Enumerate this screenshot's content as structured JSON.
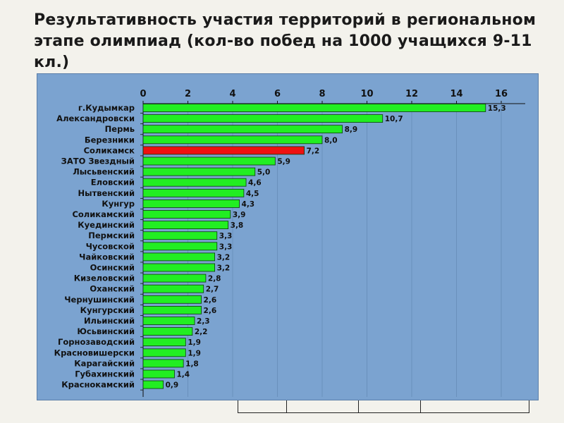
{
  "title": "Результативность участия территорий в региональном этапе олимпиад (кол-во побед на 1000 учащихся 9-11 кл.)",
  "colors": {
    "panel_bg": "#7ba3d0",
    "bar_default": "#22ee22",
    "bar_highlight": "#ee1111",
    "bar_stroke": "#0a3a0a"
  },
  "chart_data": {
    "type": "bar",
    "orientation": "horizontal",
    "title": "Результативность участия территорий в региональном этапе олимпиад (кол-во побед на 1000 учащихся 9-11 кл.)",
    "xlim": [
      0,
      16
    ],
    "xticks": [
      0,
      2,
      4,
      6,
      8,
      10,
      12,
      14,
      16
    ],
    "x_axis_position": "top",
    "grid": true,
    "highlight_category": "Соликамск",
    "categories": [
      "г.Кудымкар",
      "Александровски",
      "Пермь",
      "Березники",
      "Соликамск",
      "ЗАТО Звездный",
      "Лысьвенский",
      "Еловский",
      "Нытвенский",
      "Кунгур",
      "Соликамский",
      "Куединский",
      "Пермский",
      "Чусовской",
      "Чайковский",
      "Осинский",
      "Кизеловский",
      "Оханский",
      "Чернушинский",
      "Кунгурский",
      "Ильинский",
      "Юсьвинский",
      "Горнозаводский",
      "Красновишерски",
      "Карагайский",
      "Губахинский",
      "Краснокамский"
    ],
    "values": [
      15.3,
      10.7,
      8.9,
      8.0,
      7.2,
      5.9,
      5.0,
      4.6,
      4.5,
      4.3,
      3.9,
      3.8,
      3.3,
      3.3,
      3.2,
      3.2,
      2.8,
      2.7,
      2.6,
      2.6,
      2.3,
      2.2,
      1.9,
      1.9,
      1.8,
      1.4,
      0.9
    ],
    "value_labels": [
      "15,3",
      "10,7",
      "8,9",
      "8,0",
      "7,2",
      "5,9",
      "5,0",
      "4,6",
      "4,5",
      "4,3",
      "3,9",
      "3,8",
      "3,3",
      "3,3",
      "3,2",
      "3,2",
      "2,8",
      "2,7",
      "2,6",
      "2,6",
      "2,3",
      "2,2",
      "1,9",
      "1,9",
      "1,8",
      "1,4",
      "0,9"
    ]
  }
}
